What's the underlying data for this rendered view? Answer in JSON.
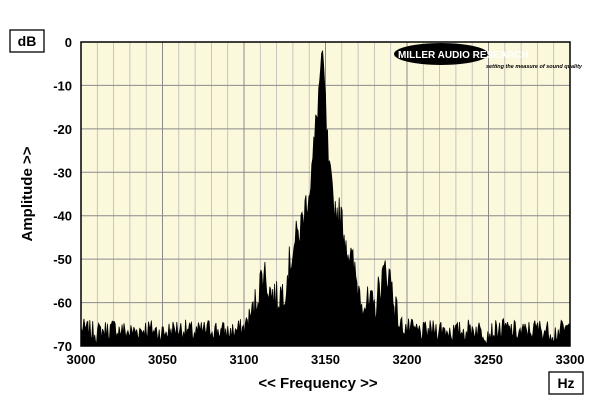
{
  "chart_data": {
    "type": "area",
    "title": "",
    "xlabel": "<< Frequency >>",
    "ylabel": "Amplitude >>",
    "x_unit": "Hz",
    "y_unit": "dB",
    "xlim": [
      3000,
      3300
    ],
    "ylim": [
      -70,
      0
    ],
    "x_ticks": [
      "3000",
      "3050",
      "3100",
      "3150",
      "3200",
      "3250",
      "3300"
    ],
    "y_ticks": [
      "0",
      "-10",
      "-20",
      "-30",
      "-40",
      "-50",
      "-60",
      "-70"
    ],
    "grid": true,
    "plot_background": "#fbf8dc",
    "fill_color": "#000000",
    "series": [
      {
        "x": [
          3000,
          3010,
          3020,
          3030,
          3040,
          3050,
          3060,
          3070,
          3080,
          3090,
          3100,
          3105,
          3108,
          3112,
          3116,
          3120,
          3125,
          3130,
          3135,
          3138,
          3141,
          3143,
          3145,
          3147,
          3148,
          3149,
          3150,
          3151,
          3152,
          3154,
          3156,
          3158,
          3160,
          3163,
          3166,
          3170,
          3175,
          3180,
          3184,
          3187,
          3190,
          3193,
          3195,
          3200,
          3210,
          3220,
          3230,
          3240,
          3250,
          3260,
          3270,
          3280,
          3290,
          3300
        ],
        "y": [
          -66,
          -67,
          -66,
          -67,
          -66,
          -67,
          -66,
          -67,
          -66,
          -67,
          -66,
          -62,
          -57,
          -51,
          -56,
          -58,
          -55,
          -46,
          -41,
          -36,
          -30,
          -23,
          -14,
          -5,
          -1,
          -6,
          -14,
          -21,
          -28,
          -34,
          -37,
          -38,
          -40,
          -45,
          -49,
          -55,
          -59,
          -60,
          -54,
          -51,
          -53,
          -60,
          -65,
          -66,
          -67,
          -66,
          -67,
          -66,
          -67,
          -66,
          -67,
          -66,
          -67,
          -66
        ]
      }
    ]
  },
  "logo": {
    "brand": "MILLER AUDIO RESEARCH",
    "tagline": "setting the measure of sound quality"
  }
}
